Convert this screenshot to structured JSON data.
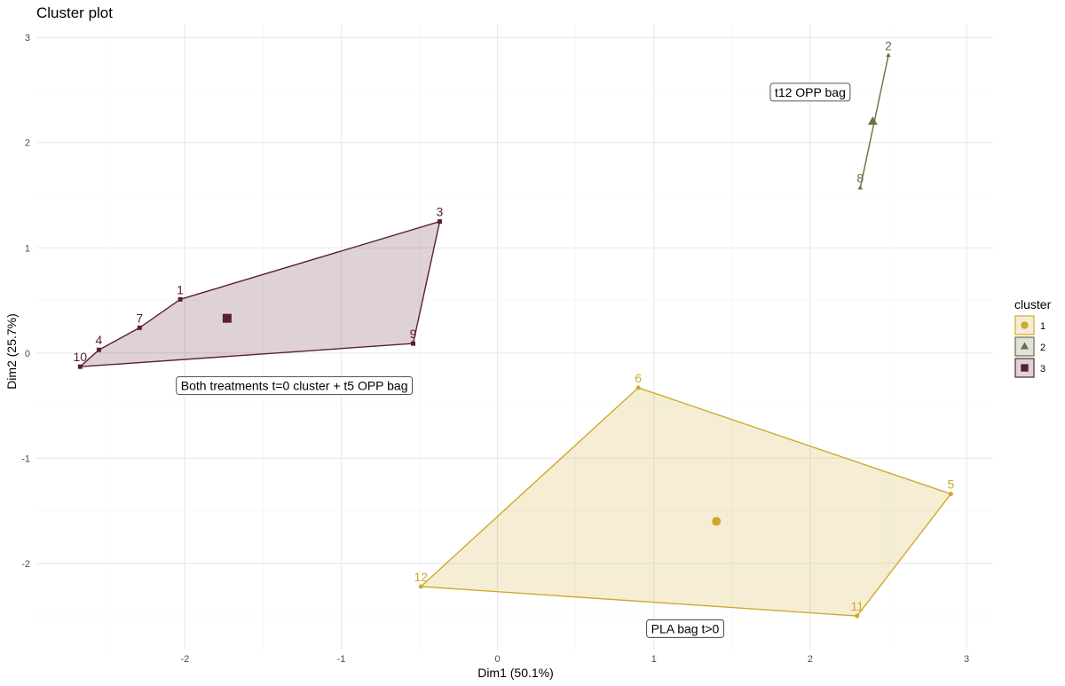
{
  "chart_data": {
    "type": "scatter",
    "title": "Cluster plot",
    "xlabel": "Dim1 (50.1%)",
    "ylabel": "Dim2 (25.7%)",
    "xlim": [
      -2.95,
      3.17
    ],
    "ylim": [
      -2.82,
      3.12
    ],
    "x_ticks": [
      -2,
      -1,
      0,
      1,
      2,
      3
    ],
    "y_ticks": [
      -2,
      -1,
      0,
      1,
      2,
      3
    ],
    "grid": true,
    "legend": {
      "title": "cluster",
      "placement": "right",
      "entries": [
        {
          "label": "1",
          "color": "#cfa92e",
          "shape": "circle"
        },
        {
          "label": "2",
          "color": "#6b7042",
          "shape": "triangle"
        },
        {
          "label": "3",
          "color": "#5b1f33",
          "shape": "square"
        }
      ]
    },
    "clusters": [
      {
        "name": "1",
        "color": "#cfa92e",
        "shape": "circle",
        "hull": [
          "6",
          "5",
          "11",
          "12"
        ],
        "center": {
          "x": 1.4,
          "y": -1.6
        },
        "points": [
          {
            "label": "6",
            "x": 0.9,
            "y": -0.33
          },
          {
            "label": "5",
            "x": 2.9,
            "y": -1.34
          },
          {
            "label": "11",
            "x": 2.3,
            "y": -2.5
          },
          {
            "label": "12",
            "x": -0.49,
            "y": -2.22
          }
        ]
      },
      {
        "name": "2",
        "color": "#6b7042",
        "shape": "triangle",
        "hull": [
          "2",
          "8"
        ],
        "center": {
          "x": 2.4,
          "y": 2.2
        },
        "points": [
          {
            "label": "2",
            "x": 2.5,
            "y": 2.83
          },
          {
            "label": "8",
            "x": 2.32,
            "y": 1.57
          }
        ]
      },
      {
        "name": "3",
        "color": "#5b1f33",
        "shape": "square",
        "hull": [
          "3",
          "9",
          "10",
          "4",
          "7",
          "1"
        ],
        "center": {
          "x": -1.73,
          "y": 0.33
        },
        "points": [
          {
            "label": "3",
            "x": -0.37,
            "y": 1.25
          },
          {
            "label": "9",
            "x": -0.54,
            "y": 0.09
          },
          {
            "label": "10",
            "x": -2.67,
            "y": -0.13
          },
          {
            "label": "4",
            "x": -2.55,
            "y": 0.03
          },
          {
            "label": "7",
            "x": -2.29,
            "y": 0.24
          },
          {
            "label": "1",
            "x": -2.03,
            "y": 0.51
          }
        ]
      }
    ],
    "annotations": [
      {
        "text": "Both treatments t=0 cluster + t5 OPP bag",
        "x": -1.3,
        "y": -0.31
      },
      {
        "text": "t12 OPP bag",
        "x": 2.0,
        "y": 2.48
      },
      {
        "text": "PLA bag t>0",
        "x": 1.2,
        "y": -2.62
      }
    ]
  }
}
